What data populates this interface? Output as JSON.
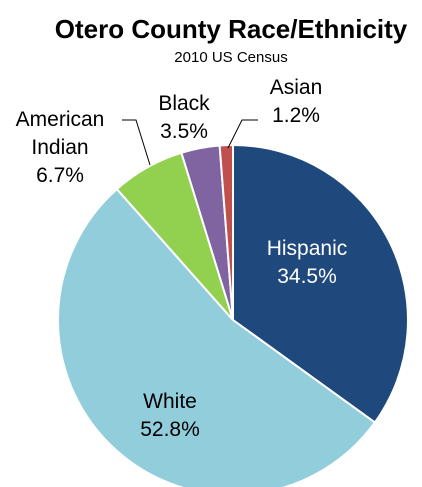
{
  "chart_data": {
    "type": "pie",
    "title": "Otero County Race/Ethnicity",
    "subtitle": "2010 US Census",
    "slices": [
      {
        "label": "Hispanic",
        "value": 34.5,
        "value_label": "34.5%",
        "color": "#1f497d",
        "label_color": "#ffffff"
      },
      {
        "label": "White",
        "value": 52.8,
        "value_label": "52.8%",
        "color": "#92cddc",
        "label_color": "#000000"
      },
      {
        "label": "American Indian",
        "value": 6.7,
        "value_label": "6.7%",
        "color": "#92d050",
        "label_color": "#000000"
      },
      {
        "label": "Black",
        "value": 3.5,
        "value_label": "3.5%",
        "color": "#8064a2",
        "label_color": "#000000"
      },
      {
        "label": "Asian",
        "value": 1.2,
        "value_label": "1.2%",
        "color": "#c0504d",
        "label_color": "#000000"
      }
    ]
  }
}
